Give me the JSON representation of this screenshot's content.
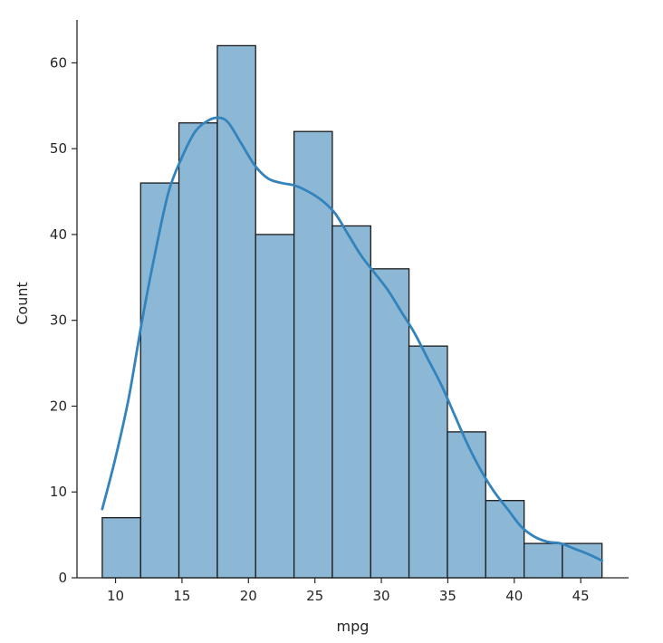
{
  "chart_data": {
    "type": "bar",
    "subtype": "histogram",
    "title": "",
    "xlabel": "mpg",
    "ylabel": "Count",
    "xlim": [
      7.1,
      48.6
    ],
    "ylim": [
      0,
      65
    ],
    "xticks": [
      10,
      15,
      20,
      25,
      30,
      35,
      40,
      45
    ],
    "yticks": [
      0,
      10,
      20,
      30,
      40,
      50,
      60
    ],
    "bin_edges": [
      9.0,
      11.89,
      14.77,
      17.66,
      20.54,
      23.43,
      26.31,
      29.2,
      32.08,
      34.97,
      37.85,
      40.74,
      43.62,
      46.6
    ],
    "values": [
      7,
      46,
      53,
      62,
      40,
      52,
      41,
      36,
      27,
      17,
      9,
      4,
      4
    ],
    "colors": {
      "bar_fill": "#8cb8d6",
      "bar_edge": "#1a1a1a",
      "kde_line": "#3383bc"
    },
    "kde": {
      "x": [
        9.0,
        10.0,
        11.0,
        12.0,
        13.0,
        14.0,
        15.0,
        16.0,
        17.0,
        17.8,
        18.5,
        19.5,
        20.5,
        21.5,
        22.5,
        23.5,
        24.5,
        25.5,
        26.5,
        27.5,
        28.5,
        29.5,
        30.5,
        31.5,
        32.5,
        33.5,
        34.5,
        35.5,
        36.5,
        37.5,
        38.5,
        39.5,
        40.5,
        41.5,
        42.5,
        43.5,
        44.5,
        45.5,
        46.6
      ],
      "y": [
        8,
        14,
        21,
        30,
        38,
        45,
        49,
        52,
        53.3,
        53.6,
        53.0,
        50.5,
        48.0,
        46.5,
        46.0,
        45.7,
        45.0,
        44.0,
        42.5,
        40.0,
        37.5,
        35.5,
        33.5,
        31.0,
        28.5,
        25.5,
        22.5,
        19.0,
        15.5,
        12.5,
        10.0,
        8.0,
        6.0,
        4.8,
        4.2,
        4.0,
        3.4,
        2.8,
        2.0
      ]
    }
  }
}
